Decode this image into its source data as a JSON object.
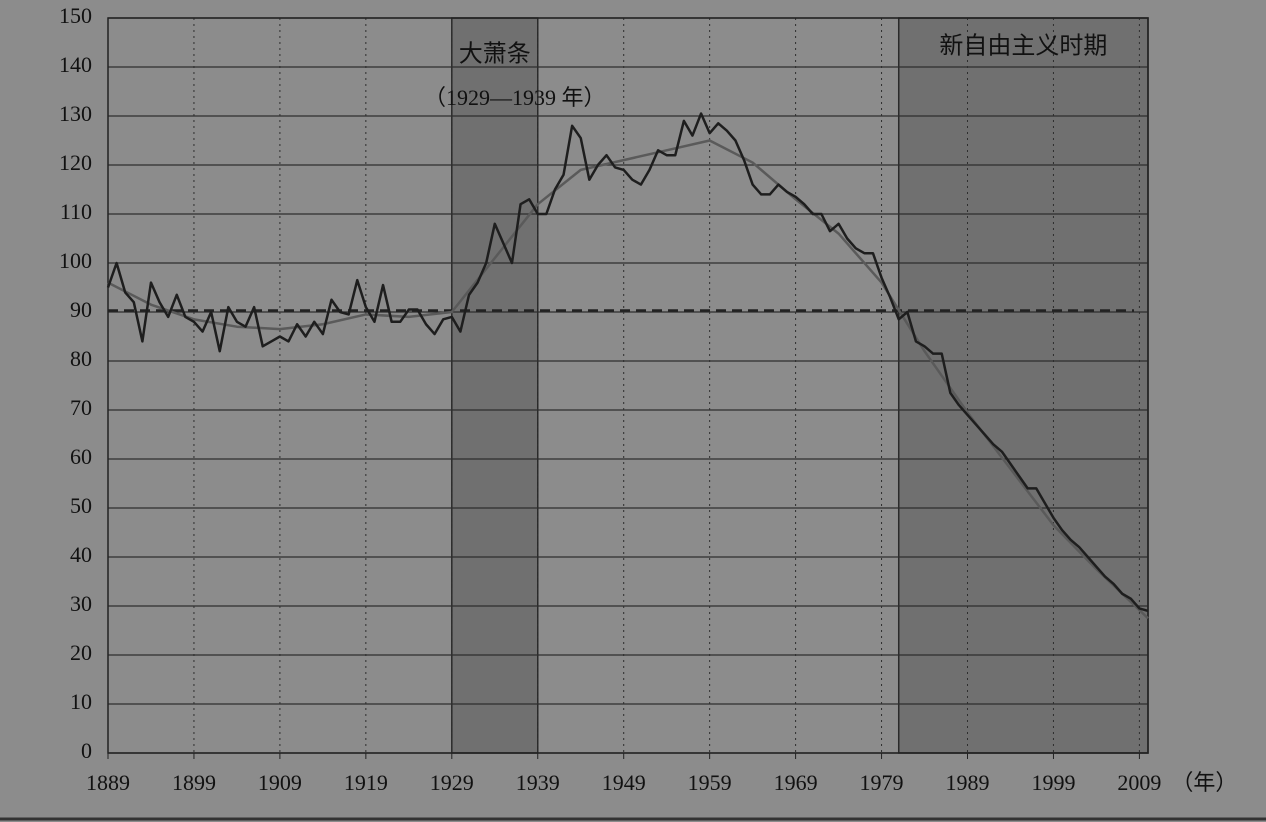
{
  "chart_data": {
    "type": "line",
    "xlim": [
      1889,
      2010
    ],
    "ylim": [
      0,
      150
    ],
    "xticks": [
      1889,
      1899,
      1909,
      1919,
      1929,
      1939,
      1949,
      1959,
      1969,
      1979,
      1989,
      1999,
      2009
    ],
    "yticks": [
      0,
      10,
      20,
      30,
      40,
      50,
      60,
      70,
      80,
      90,
      100,
      110,
      120,
      130,
      140,
      150
    ],
    "x_unit": "（年）",
    "grid": true,
    "reference_line": 90.3,
    "shaded_periods": [
      {
        "start": 1929,
        "end": 1939,
        "label": "大萧条",
        "sublabel": "（1929—1939 年）"
      },
      {
        "start": 1981,
        "end": 2010,
        "label": "新自由主义时期"
      }
    ],
    "series": [
      {
        "color": "#1e1e1e",
        "x": [
          1889,
          1890,
          1891,
          1892,
          1893,
          1894,
          1895,
          1896,
          1897,
          1898,
          1899,
          1900,
          1901,
          1902,
          1903,
          1904,
          1905,
          1906,
          1907,
          1908,
          1909,
          1910,
          1911,
          1912,
          1913,
          1914,
          1915,
          1916,
          1917,
          1918,
          1919,
          1920,
          1921,
          1922,
          1923,
          1924,
          1925,
          1926,
          1927,
          1928,
          1929,
          1930,
          1931,
          1932,
          1933,
          1934,
          1935,
          1936,
          1937,
          1938,
          1939,
          1940,
          1941,
          1942,
          1943,
          1944,
          1945,
          1946,
          1947,
          1948,
          1949,
          1950,
          1951,
          1952,
          1953,
          1954,
          1955,
          1956,
          1957,
          1958,
          1959,
          1960,
          1961,
          1962,
          1963,
          1964,
          1965,
          1966,
          1967,
          1968,
          1969,
          1970,
          1971,
          1972,
          1973,
          1974,
          1975,
          1976,
          1977,
          1978,
          1979,
          1980,
          1981,
          1982,
          1983,
          1984,
          1985,
          1986,
          1987,
          1988,
          1989,
          1990,
          1991,
          1992,
          1993,
          1994,
          1995,
          1996,
          1997,
          1998,
          1999,
          2000,
          2001,
          2002,
          2003,
          2004,
          2005,
          2006,
          2007,
          2008,
          2009,
          2010
        ],
        "values": [
          95,
          100,
          94,
          92,
          84,
          96,
          92,
          89,
          93.5,
          89,
          88,
          86,
          90,
          82,
          91,
          88,
          87,
          91,
          83,
          84,
          85,
          84,
          87.5,
          85,
          88,
          85.5,
          92.5,
          90,
          89.5,
          96.5,
          91,
          88,
          95.5,
          88,
          88,
          90.5,
          90.5,
          87.5,
          85.5,
          88.5,
          89,
          86,
          93.5,
          96,
          100,
          108,
          104,
          100,
          112,
          113,
          110,
          110,
          115,
          118,
          128,
          125.5,
          117,
          120,
          122,
          119.5,
          119,
          117,
          116,
          119,
          123,
          122,
          122,
          129,
          126,
          130.5,
          126.5,
          128.5,
          127,
          125,
          121,
          116,
          114,
          114,
          116,
          114.5,
          113.5,
          112,
          110,
          110,
          106.5,
          108,
          105,
          103,
          102,
          102,
          97,
          93,
          88.5,
          90,
          84,
          83,
          81.5,
          81.5,
          73.5,
          71,
          69,
          67,
          65,
          63,
          61.5,
          59,
          56.5,
          54,
          54,
          51,
          48,
          45.5,
          43.5,
          42,
          40,
          38,
          36,
          34.5,
          32.5,
          31.5,
          29.5,
          29
        ]
      },
      {
        "color": "#5a5a5a",
        "x": [
          1889,
          1894,
          1899,
          1904,
          1909,
          1914,
          1919,
          1924,
          1929,
          1934,
          1939,
          1944,
          1949,
          1954,
          1959,
          1964,
          1969,
          1974,
          1979,
          1984,
          1989,
          1994,
          1999,
          2004,
          2010
        ],
        "values": [
          96,
          91.5,
          88.5,
          87,
          86.5,
          87.5,
          89.5,
          89,
          90,
          101,
          112,
          119,
          121,
          123,
          125,
          120.5,
          113,
          106,
          96,
          82,
          69.5,
          58,
          46.5,
          37.5,
          27.5
        ]
      }
    ]
  }
}
